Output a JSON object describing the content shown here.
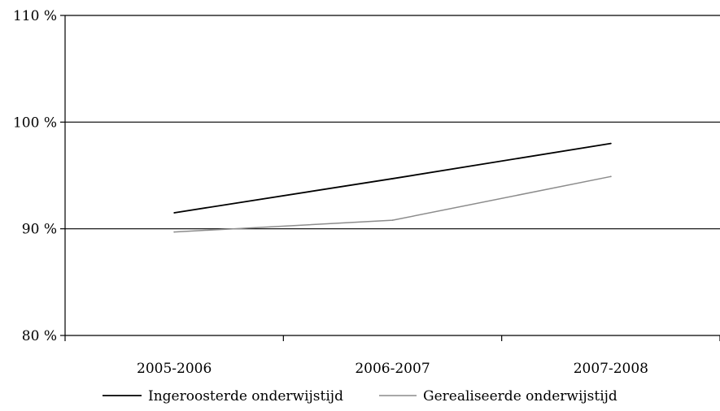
{
  "chart_data": {
    "type": "line",
    "categories": [
      "2005-2006",
      "2006-2007",
      "2007-2008"
    ],
    "series": [
      {
        "name": "Ingeroosterde onderwijstijd",
        "values": [
          91.5,
          94.7,
          98.0
        ],
        "color": "#000000"
      },
      {
        "name": "Gerealiseerde onderwijstijd",
        "values": [
          89.7,
          90.8,
          94.9
        ],
        "color": "#8c8c8c"
      }
    ],
    "ylim": [
      80,
      110
    ],
    "yticks": [
      80,
      90,
      100,
      110
    ],
    "ytick_labels": [
      "80 %",
      "90 %",
      "100 %",
      "110 %"
    ],
    "grid": true,
    "legend": "bottom"
  }
}
